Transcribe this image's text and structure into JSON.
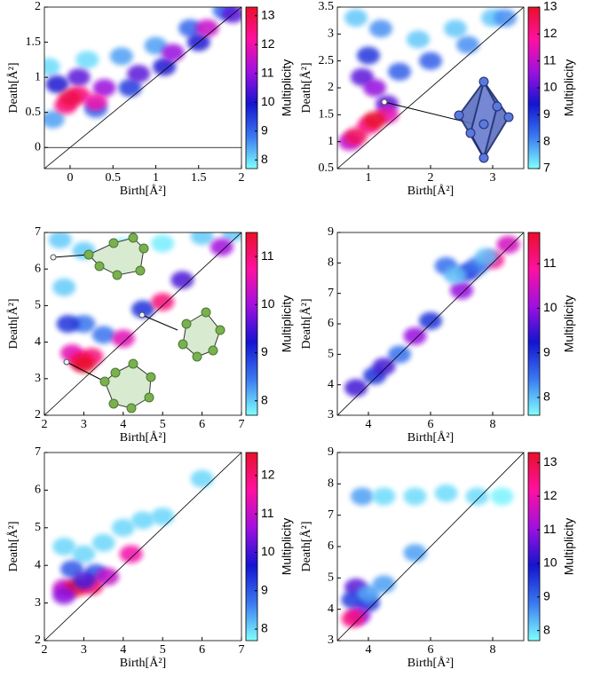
{
  "chart_data": [
    {
      "type": "heatmap",
      "xlabel": "Birth[Å²]",
      "ylabel": "Death[Å²]",
      "colorbar_label": "Multiplicity",
      "xlim": [
        -0.3,
        2
      ],
      "ylim": [
        -0.3,
        2
      ],
      "xticks": [
        0,
        0.5,
        1,
        1.5,
        2
      ],
      "yticks": [
        0,
        0.5,
        1,
        1.5,
        2
      ],
      "clim": [
        7.7,
        13.3
      ],
      "cticks": [
        8,
        9,
        10,
        11,
        12,
        13
      ],
      "hline": 0,
      "colormap": [
        "#80ffff",
        "#3a78f0",
        "#1414d0",
        "#a010e0",
        "#ff10a0",
        "#e8102a"
      ],
      "x": [
        -0.25,
        0.2,
        0.6,
        1.0,
        1.4,
        1.8,
        -0.2,
        0.3,
        0.7,
        1.1,
        1.5,
        1.9,
        -0.15,
        0.1,
        0.4,
        0.8,
        1.2,
        1.6,
        -0.05,
        0.1,
        0.3,
        0.0
      ],
      "y": [
        1.15,
        1.25,
        1.3,
        1.45,
        1.7,
        1.95,
        0.4,
        0.55,
        0.85,
        1.15,
        1.5,
        1.9,
        0.9,
        1.0,
        0.85,
        1.05,
        1.35,
        1.7,
        0.6,
        0.75,
        0.65,
        0.7
      ],
      "values": [
        8,
        8,
        8.5,
        8.5,
        9,
        9,
        8.5,
        9,
        9.5,
        10,
        10,
        10.5,
        10,
        10.5,
        11,
        10.5,
        11,
        11.5,
        12.5,
        12.5,
        12,
        13
      ]
    },
    {
      "type": "heatmap",
      "xlabel": "Birth[Å²]",
      "ylabel": "Death[Å²]",
      "colorbar_label": "Multiplicity",
      "xlim": [
        0.5,
        3.5
      ],
      "ylim": [
        0.5,
        3.5
      ],
      "xticks": [
        1,
        2,
        3
      ],
      "yticks": [
        0.5,
        1,
        1.5,
        2,
        2.5,
        3,
        3.5
      ],
      "clim": [
        7,
        13
      ],
      "cticks": [
        7,
        8,
        9,
        10,
        11,
        12,
        13
      ],
      "colormap": [
        "#80ffff",
        "#3a78f0",
        "#1414d0",
        "#a010e0",
        "#ff10a0",
        "#e8102a"
      ],
      "x": [
        0.8,
        1.2,
        1.8,
        2.4,
        3.0,
        1.0,
        1.5,
        2.0,
        2.6,
        3.2,
        0.9,
        1.1,
        1.3,
        0.7,
        1.0,
        1.3,
        0.8,
        1.1
      ],
      "y": [
        3.3,
        3.1,
        2.9,
        3.1,
        3.3,
        2.6,
        2.3,
        2.5,
        2.8,
        3.3,
        2.2,
        2.0,
        1.7,
        1.0,
        1.3,
        1.5,
        1.1,
        1.4
      ],
      "values": [
        7.5,
        8,
        7.5,
        7.5,
        7.5,
        9,
        8.5,
        8.5,
        8,
        8,
        10,
        10.5,
        10,
        11,
        12,
        11.5,
        12.5,
        13
      ]
    },
    {
      "type": "heatmap",
      "xlabel": "Birth[Å²]",
      "ylabel": "Death[Å²]",
      "colorbar_label": "Multiplicity",
      "xlim": [
        2,
        7
      ],
      "ylim": [
        2,
        7
      ],
      "xticks": [
        2,
        3,
        4,
        5,
        6,
        7
      ],
      "yticks": [
        2,
        3,
        4,
        5,
        6,
        7
      ],
      "clim": [
        7.7,
        11.5
      ],
      "cticks": [
        8,
        9,
        10,
        11
      ],
      "colormap": [
        "#80ffff",
        "#3a78f0",
        "#1414d0",
        "#a010e0",
        "#ff10a0",
        "#e8102a"
      ],
      "x": [
        2.4,
        3,
        4,
        5,
        6,
        6.8,
        2.5,
        3,
        2.6,
        3.5,
        4.5,
        5.5,
        6.5,
        2.7,
        2.9,
        3.2,
        3.0,
        4.0,
        5.0
      ],
      "y": [
        6.8,
        6.5,
        6.6,
        6.7,
        6.9,
        7.0,
        5.5,
        4.5,
        4.5,
        4.2,
        4.9,
        5.7,
        6.6,
        3.7,
        3.5,
        3.6,
        3.4,
        4.1,
        5.1
      ],
      "values": [
        8,
        8,
        7.8,
        7.8,
        8,
        8,
        8,
        8.5,
        9,
        8.5,
        9,
        9.5,
        10,
        10.5,
        11,
        11,
        11.5,
        10.5,
        11
      ]
    },
    {
      "type": "heatmap",
      "xlabel": "Birth[Å²]",
      "ylabel": "Death[Å²]",
      "colorbar_label": "Multiplicity",
      "xlim": [
        3,
        9
      ],
      "ylim": [
        3,
        9
      ],
      "xticks": [
        4,
        6,
        8
      ],
      "yticks": [
        3,
        4,
        5,
        6,
        7,
        8,
        9
      ],
      "clim": [
        7.6,
        11.7
      ],
      "cticks": [
        8,
        9,
        10,
        11
      ],
      "colormap": [
        "#80ffff",
        "#3a78f0",
        "#1414d0",
        "#a010e0",
        "#ff10a0",
        "#e8102a"
      ],
      "x": [
        3.6,
        4.2,
        5,
        6,
        7,
        8,
        6.5,
        7.2,
        7.5,
        6.8,
        7.8,
        8.5,
        5.5,
        4.5
      ],
      "y": [
        3.9,
        4.3,
        5,
        6.1,
        7.1,
        8.1,
        7.9,
        7.7,
        7.9,
        7.6,
        8.2,
        8.6,
        5.6,
        4.6
      ],
      "values": [
        9.5,
        9,
        8.5,
        9,
        10,
        11,
        8.5,
        9,
        8.5,
        8,
        8,
        10.5,
        10,
        9.5
      ]
    },
    {
      "type": "heatmap",
      "xlabel": "Birth[Å²]",
      "ylabel": "Death[Å²]",
      "colorbar_label": "Multiplicity",
      "xlim": [
        2,
        7
      ],
      "ylim": [
        2,
        7
      ],
      "xticks": [
        2,
        3,
        4,
        5,
        6,
        7
      ],
      "yticks": [
        2,
        3,
        4,
        5,
        6,
        7
      ],
      "clim": [
        7.7,
        12.6
      ],
      "cticks": [
        8,
        9,
        10,
        11,
        12
      ],
      "colormap": [
        "#80ffff",
        "#3a78f0",
        "#1414d0",
        "#a010e0",
        "#ff10a0",
        "#e8102a"
      ],
      "x": [
        2.5,
        3.0,
        3.5,
        4.0,
        4.5,
        5,
        6,
        2.7,
        3.3,
        2.5,
        2.8,
        3.2,
        3.6,
        4.2,
        2.5,
        3.0
      ],
      "y": [
        4.5,
        4.3,
        4.6,
        5.0,
        5.2,
        5.3,
        6.3,
        3.9,
        3.8,
        3.4,
        3.4,
        3.45,
        3.7,
        4.3,
        3.2,
        3.6
      ],
      "values": [
        8,
        8,
        8,
        8,
        8,
        8,
        8,
        9,
        9,
        11,
        12.5,
        12,
        11,
        11.5,
        10.5,
        10
      ]
    },
    {
      "type": "heatmap",
      "xlabel": "Birth[Å²]",
      "ylabel": "Death[Å²]",
      "colorbar_label": "Multiplicity",
      "xlim": [
        3,
        9
      ],
      "ylim": [
        3,
        9
      ],
      "xticks": [
        4,
        6,
        8
      ],
      "yticks": [
        3,
        4,
        5,
        6,
        7,
        8,
        9
      ],
      "clim": [
        7.7,
        13.3
      ],
      "cticks": [
        8,
        9,
        10,
        11,
        12,
        13
      ],
      "colormap": [
        "#80ffff",
        "#3a78f0",
        "#1414d0",
        "#a010e0",
        "#ff10a0",
        "#e8102a"
      ],
      "x": [
        3.8,
        4.5,
        5.5,
        6.5,
        7.5,
        8.3,
        3.6,
        4.0,
        3.5,
        4.0,
        4.5,
        5.5,
        3.7,
        3.5
      ],
      "y": [
        7.6,
        7.6,
        7.6,
        7.7,
        7.6,
        7.6,
        4.7,
        4.2,
        4.3,
        4.5,
        4.8,
        5.8,
        3.8,
        3.7
      ],
      "values": [
        8.5,
        8,
        8,
        8,
        8,
        7.8,
        10.5,
        9.5,
        9.5,
        8.5,
        8.5,
        8.5,
        11,
        12.5
      ]
    }
  ]
}
